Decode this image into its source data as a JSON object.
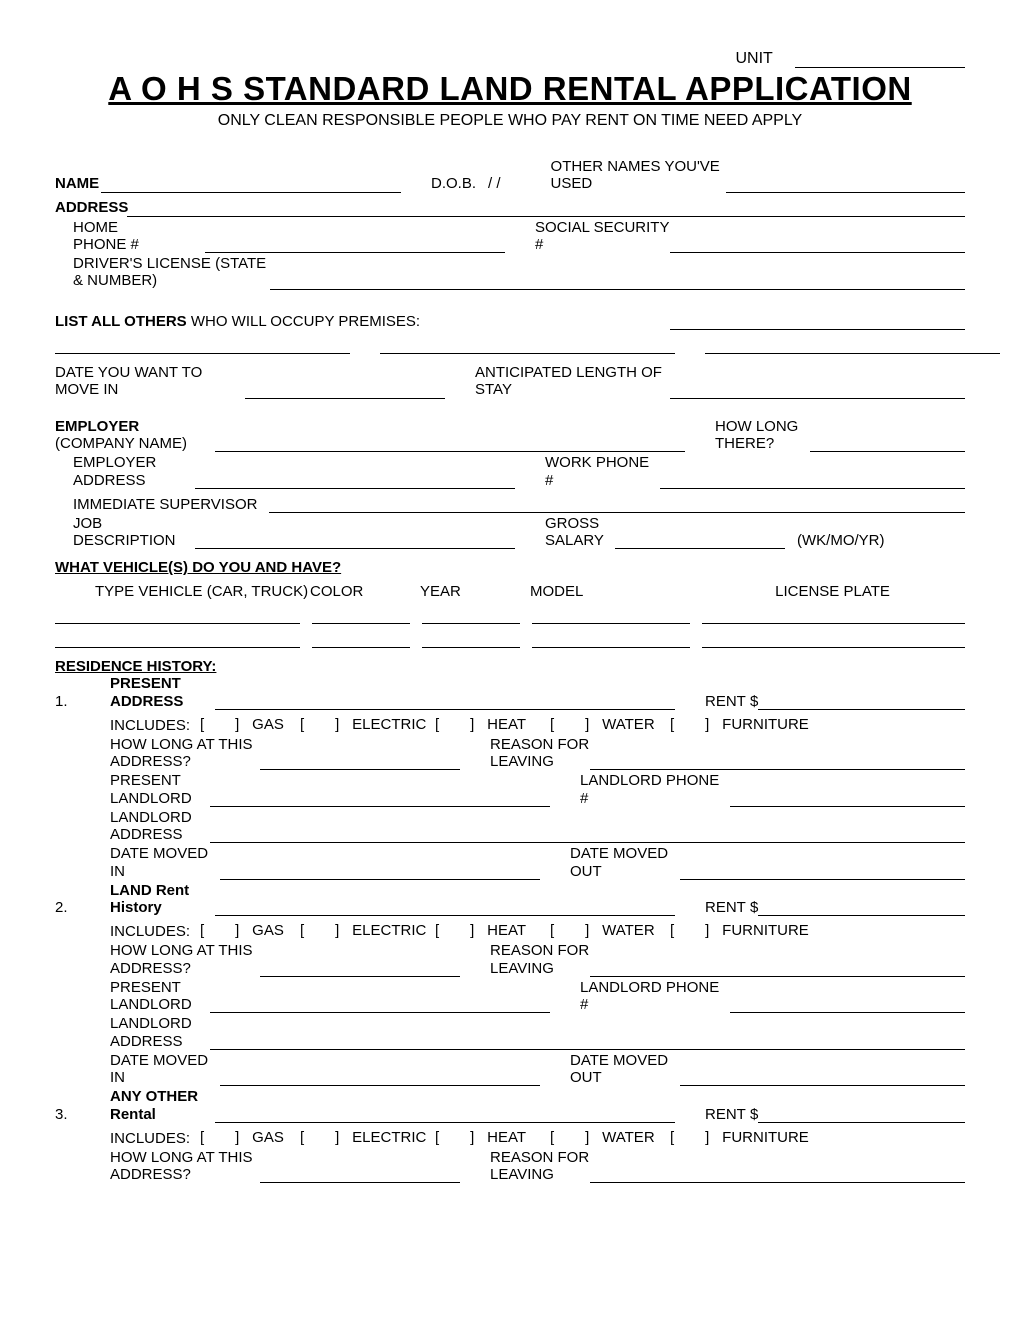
{
  "header": {
    "unit_label": "UNIT",
    "title": "A O H S STANDARD LAND RENTAL APPLICATION",
    "subtitle": "ONLY CLEAN RESPONSIBLE PEOPLE WHO PAY RENT ON TIME NEED APPLY"
  },
  "personal": {
    "name_label": "NAME",
    "dob_label": "D.O.B.",
    "dob_sep": "/   /",
    "other_names_label": "OTHER NAMES YOU'VE USED",
    "address_label": "ADDRESS",
    "home_phone_label": "HOME PHONE #",
    "ssn_label": "SOCIAL SECURITY #",
    "dl_label": "DRIVER'S LICENSE (STATE & NUMBER)",
    "list_others_bold": "LIST ALL OTHERS",
    "list_others_rest": " WHO WILL OCCUPY PREMISES:",
    "move_in_label": "DATE YOU WANT TO MOVE IN",
    "stay_label": "ANTICIPATED LENGTH OF STAY"
  },
  "employment": {
    "employer_bold": "EMPLOYER",
    "employer_rest": " (COMPANY NAME)",
    "how_long_label": "HOW LONG THERE?",
    "addr_label": "EMPLOYER ADDRESS",
    "work_phone_label": "WORK PHONE #",
    "supervisor_label": "IMMEDIATE SUPERVISOR",
    "job_label": "JOB DESCRIPTION",
    "salary_label": "GROSS SALARY",
    "salary_period": "(WK/MO/YR)"
  },
  "vehicles": {
    "heading": "WHAT VEHICLE(S) DO YOU AND HAVE?",
    "col_type": "TYPE VEHICLE (CAR, TRUCK)",
    "col_color": "COLOR",
    "col_year": "YEAR",
    "col_model": "MODEL",
    "col_plate": "LICENSE PLATE"
  },
  "residence": {
    "heading": "RESIDENCE HISTORY:",
    "includes_label": "INCLUDES:",
    "gas": "GAS",
    "electric": "ELECTRIC",
    "heat": "HEAT",
    "water": "WATER",
    "furniture": "FURNITURE",
    "how_long_label": "HOW LONG AT THIS ADDRESS?",
    "reason_label": "REASON FOR LEAVING",
    "landlord_label": "PRESENT LANDLORD",
    "landlord_phone_label": "LANDLORD PHONE #",
    "landlord_addr_label": "LANDLORD ADDRESS",
    "moved_in_label": "DATE MOVED IN",
    "moved_out_label": "DATE MOVED OUT",
    "rent_label_full": "RENT",
    "rent_label_short": "RENT",
    "dollar": "$",
    "entries": [
      {
        "num": "1.",
        "title": "PRESENT ADDRESS",
        "rent_label": "RENT"
      },
      {
        "num": "2.",
        "title": "LAND Rent History",
        "rent_label": "RENT"
      },
      {
        "num": "3.",
        "title": "ANY OTHER Rental",
        "rent_label": "RENT"
      }
    ]
  },
  "checkbox": {
    "open": "[",
    "close": "]"
  }
}
